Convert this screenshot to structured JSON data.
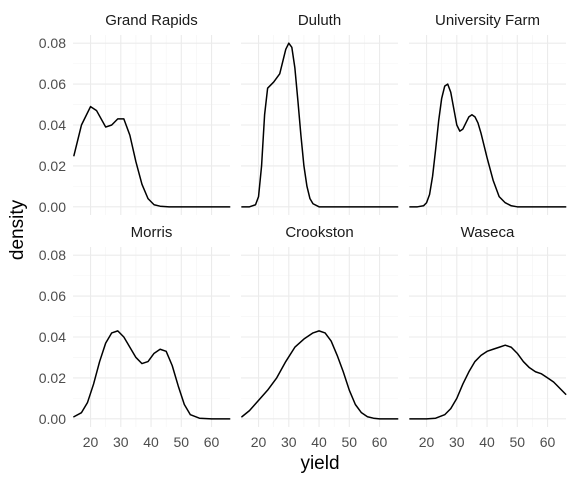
{
  "chart_data": {
    "type": "line",
    "xlabel": "yield",
    "ylabel": "density",
    "xlim": [
      14.2,
      66.1
    ],
    "ylim": [
      -0.004,
      0.084
    ],
    "x_ticks": [
      20,
      30,
      40,
      50,
      60
    ],
    "y_ticks": [
      0.0,
      0.02,
      0.04,
      0.06,
      0.08
    ],
    "x_tick_labels": [
      "20",
      "30",
      "40",
      "50",
      "60"
    ],
    "y_tick_labels": [
      "0.00",
      "0.02",
      "0.04",
      "0.06",
      "0.08"
    ],
    "grid": true,
    "layout": "facet_wrap 2 rows x 3 columns",
    "panels": [
      {
        "title": "Grand Rapids",
        "x": [
          14.5,
          17,
          20,
          22,
          25,
          27,
          29,
          31,
          33,
          35,
          37,
          39,
          41,
          43,
          46,
          50,
          55,
          60,
          66
        ],
        "y": [
          0.025,
          0.04,
          0.049,
          0.047,
          0.039,
          0.04,
          0.043,
          0.043,
          0.035,
          0.022,
          0.011,
          0.004,
          0.001,
          0.0003,
          0,
          0,
          0,
          0,
          0
        ]
      },
      {
        "title": "Duluth",
        "x": [
          14.5,
          17,
          19,
          20,
          21,
          22,
          23,
          25,
          27,
          28,
          29,
          30,
          31,
          32,
          33,
          34,
          35,
          36,
          37,
          38,
          40,
          45,
          50,
          55,
          60,
          66
        ],
        "y": [
          0,
          0,
          0.001,
          0.005,
          0.02,
          0.045,
          0.058,
          0.061,
          0.065,
          0.071,
          0.077,
          0.08,
          0.078,
          0.068,
          0.052,
          0.035,
          0.02,
          0.01,
          0.004,
          0.0015,
          0,
          0,
          0,
          0,
          0,
          0
        ]
      },
      {
        "title": "University Farm",
        "x": [
          14.5,
          17,
          19,
          20,
          21,
          22,
          23,
          24,
          25,
          26,
          27,
          28,
          29,
          30,
          31,
          32,
          33,
          34,
          35,
          36,
          37,
          38,
          40,
          42,
          44,
          46,
          48,
          50,
          53,
          56,
          60,
          66
        ],
        "y": [
          0,
          0,
          0.0005,
          0.002,
          0.006,
          0.015,
          0.028,
          0.042,
          0.053,
          0.059,
          0.06,
          0.056,
          0.048,
          0.04,
          0.037,
          0.038,
          0.041,
          0.044,
          0.045,
          0.044,
          0.041,
          0.036,
          0.024,
          0.013,
          0.005,
          0.002,
          0.0005,
          0,
          0,
          0,
          0,
          0
        ]
      },
      {
        "title": "Morris",
        "x": [
          14.5,
          17,
          19,
          21,
          23,
          25,
          27,
          29,
          31,
          33,
          35,
          37,
          39,
          41,
          43,
          45,
          47,
          49,
          51,
          53,
          56,
          60,
          66
        ],
        "y": [
          0.001,
          0.003,
          0.008,
          0.017,
          0.028,
          0.037,
          0.042,
          0.043,
          0.04,
          0.035,
          0.03,
          0.027,
          0.028,
          0.032,
          0.034,
          0.033,
          0.026,
          0.016,
          0.007,
          0.002,
          0.0003,
          0,
          0
        ]
      },
      {
        "title": "Crookston",
        "x": [
          14.5,
          17,
          20,
          23,
          26,
          29,
          32,
          35,
          38,
          40,
          42,
          44,
          46,
          48,
          50,
          52,
          54,
          56,
          58,
          60,
          63,
          66
        ],
        "y": [
          0.001,
          0.004,
          0.009,
          0.014,
          0.02,
          0.028,
          0.035,
          0.039,
          0.042,
          0.043,
          0.042,
          0.038,
          0.031,
          0.023,
          0.014,
          0.007,
          0.003,
          0.001,
          0.0003,
          0,
          0,
          0
        ]
      },
      {
        "title": "Waseca",
        "x": [
          14.5,
          17,
          20,
          23,
          26,
          28,
          30,
          32,
          34,
          36,
          38,
          40,
          42,
          44,
          46,
          48,
          50,
          52,
          54,
          56,
          58,
          60,
          62,
          64,
          66
        ],
        "y": [
          0,
          0,
          0,
          0.0003,
          0.002,
          0.005,
          0.01,
          0.017,
          0.023,
          0.028,
          0.031,
          0.033,
          0.034,
          0.035,
          0.036,
          0.035,
          0.032,
          0.028,
          0.025,
          0.023,
          0.022,
          0.02,
          0.018,
          0.015,
          0.012
        ]
      }
    ]
  }
}
